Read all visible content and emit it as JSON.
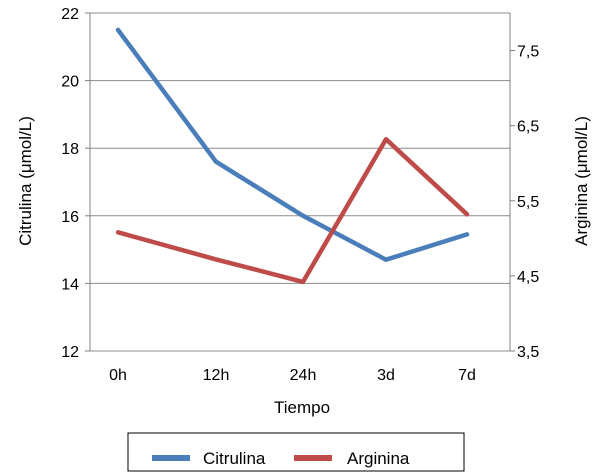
{
  "chart_data": {
    "type": "line",
    "xlabel": "Tiempo",
    "ylabel_left": "Citrulina (μmol/L)",
    "ylabel_right": "Arginina (μmol/L)",
    "categories": [
      "0h",
      "12h",
      "24h",
      "3d",
      "7d"
    ],
    "left_axis": {
      "ylim": [
        12,
        22
      ],
      "ticks": [
        "12",
        "14",
        "16",
        "18",
        "20",
        "22"
      ]
    },
    "right_axis": {
      "ylim": [
        3.5,
        8
      ],
      "ticks": [
        "3,5",
        "4,5",
        "5,5",
        "6,5",
        "7,5"
      ]
    },
    "series": [
      {
        "name": "Citrulina",
        "axis": "left",
        "color": "#4a7ebb",
        "values": [
          21.5,
          17.6,
          16.0,
          14.7,
          15.45
        ]
      },
      {
        "name": "Arginina",
        "axis": "right",
        "color": "#be4b48",
        "values": [
          5.08,
          4.72,
          4.42,
          6.32,
          5.32
        ]
      }
    ],
    "grid": true,
    "legend_position": "bottom"
  }
}
